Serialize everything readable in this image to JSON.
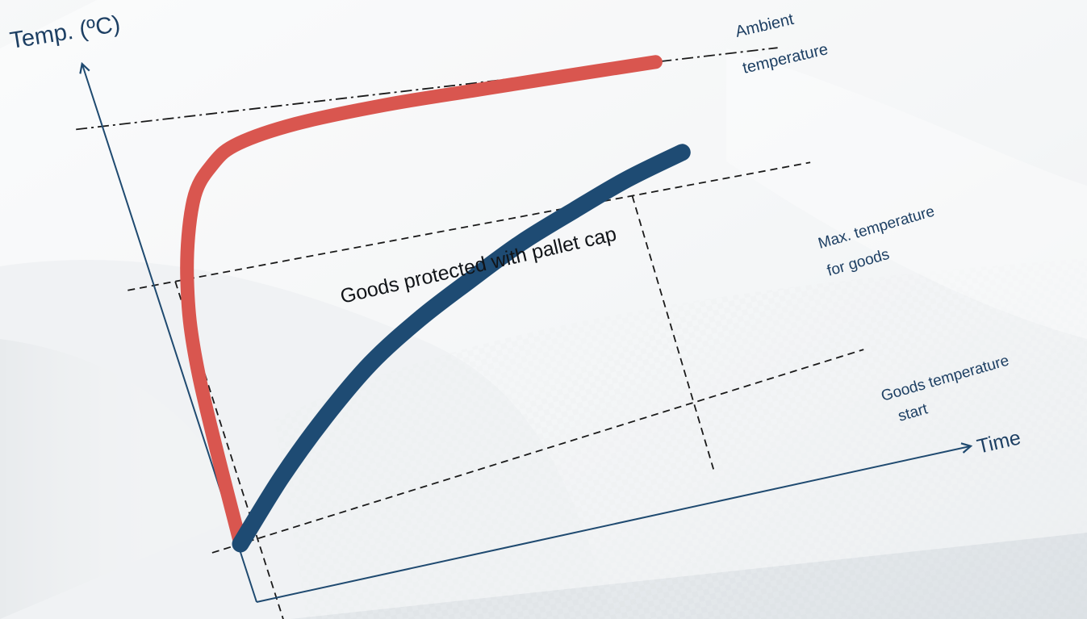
{
  "colors": {
    "ambient_curve": "#d9564f",
    "goods_curve": "#1e4b73",
    "axis": "#1f4a70",
    "guide_lines": "#1a1a1a",
    "label_text": "#1d3f63"
  },
  "labels": {
    "y_axis": "Temp. (ºC)",
    "x_axis": "Time",
    "ambient_line1": "Ambient",
    "ambient_line2": "temperature",
    "max_line1": "Max. temperature",
    "max_line2": "for goods",
    "start_line1": "Goods temperature",
    "start_line2": "start",
    "goods_curve_label": "Goods protected with pallet cap"
  },
  "chart_data": {
    "type": "line",
    "title": "",
    "xlabel": "Time",
    "ylabel": "Temp. (ºC)",
    "x_tick_labels": [],
    "y_tick_labels": [],
    "reference_levels": [
      {
        "name": "Ambient temperature",
        "value": 1.0
      },
      {
        "name": "Max. temperature for goods",
        "value": 0.62
      },
      {
        "name": "Goods temperature start",
        "value": 0.0
      }
    ],
    "series": [
      {
        "name": "Ambient temperature",
        "x": [
          0,
          0.02,
          0.05,
          0.1,
          0.15,
          0.2,
          0.3,
          0.45,
          0.6,
          0.75,
          0.9
        ],
        "y": [
          0.0,
          0.4,
          0.62,
          0.8,
          0.88,
          0.92,
          0.95,
          0.97,
          0.98,
          0.99,
          1.0
        ]
      },
      {
        "name": "Goods protected with pallet cap",
        "x": [
          0,
          0.1,
          0.2,
          0.3,
          0.4,
          0.5,
          0.6,
          0.7,
          0.8,
          0.9
        ],
        "y": [
          0.0,
          0.12,
          0.23,
          0.33,
          0.41,
          0.48,
          0.55,
          0.61,
          0.67,
          0.72
        ]
      }
    ],
    "crossing_marks": [
      {
        "name": "Ambient exceeds max",
        "x": 0.03
      },
      {
        "name": "Goods exceed max",
        "x": 0.8
      }
    ],
    "grid": false,
    "legend": "none"
  }
}
